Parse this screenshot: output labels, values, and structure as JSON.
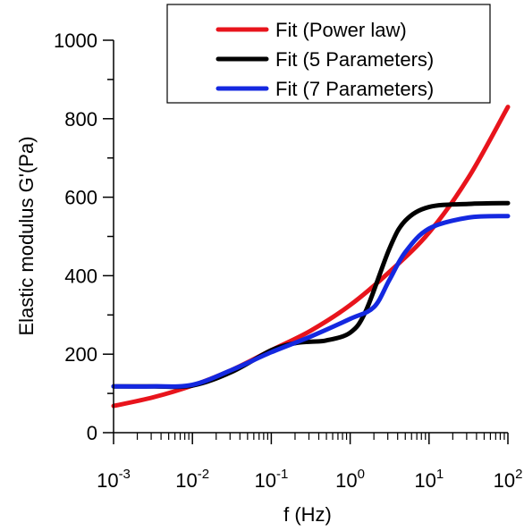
{
  "chart_data": {
    "type": "line",
    "xlabel": "f (Hz)",
    "ylabel": "Elastic modulus G'(Pa)",
    "xscale": "log",
    "xlim": [
      0.001,
      100
    ],
    "ylim": [
      0,
      1000
    ],
    "x_tick_labels": [
      {
        "base": "10",
        "exp": "-3"
      },
      {
        "base": "10",
        "exp": "-2"
      },
      {
        "base": "10",
        "exp": "-1"
      },
      {
        "base": "10",
        "exp": "0"
      },
      {
        "base": "10",
        "exp": "1"
      },
      {
        "base": "10",
        "exp": "2"
      }
    ],
    "y_ticks": [
      0,
      200,
      400,
      600,
      800,
      1000
    ],
    "legend_position": "top-right",
    "grid": false,
    "series": [
      {
        "name": "Fit (Power law)",
        "color": "#e8141c",
        "x": [
          0.001,
          0.00316,
          0.01,
          0.0316,
          0.1,
          0.316,
          1,
          3.16,
          10,
          31.6,
          100
        ],
        "y": [
          68,
          90,
          120,
          160,
          210,
          260,
          325,
          410,
          510,
          650,
          830
        ]
      },
      {
        "name": "Fit (5 Parameters)",
        "color": "#000000",
        "x": [
          0.001,
          0.00316,
          0.01,
          0.0316,
          0.1,
          0.2,
          0.316,
          0.5,
          1,
          1.58,
          3.16,
          5,
          10,
          31.6,
          100
        ],
        "y": [
          118,
          118,
          120,
          155,
          210,
          228,
          232,
          235,
          255,
          310,
          470,
          540,
          575,
          583,
          585
        ]
      },
      {
        "name": "Fit (7 Parameters)",
        "color": "#1428e0",
        "x": [
          0.001,
          0.00316,
          0.01,
          0.0316,
          0.1,
          0.316,
          1,
          2,
          3.16,
          5,
          10,
          31.6,
          100
        ],
        "y": [
          118,
          118,
          122,
          160,
          205,
          245,
          290,
          320,
          390,
          460,
          520,
          548,
          552
        ]
      }
    ]
  }
}
